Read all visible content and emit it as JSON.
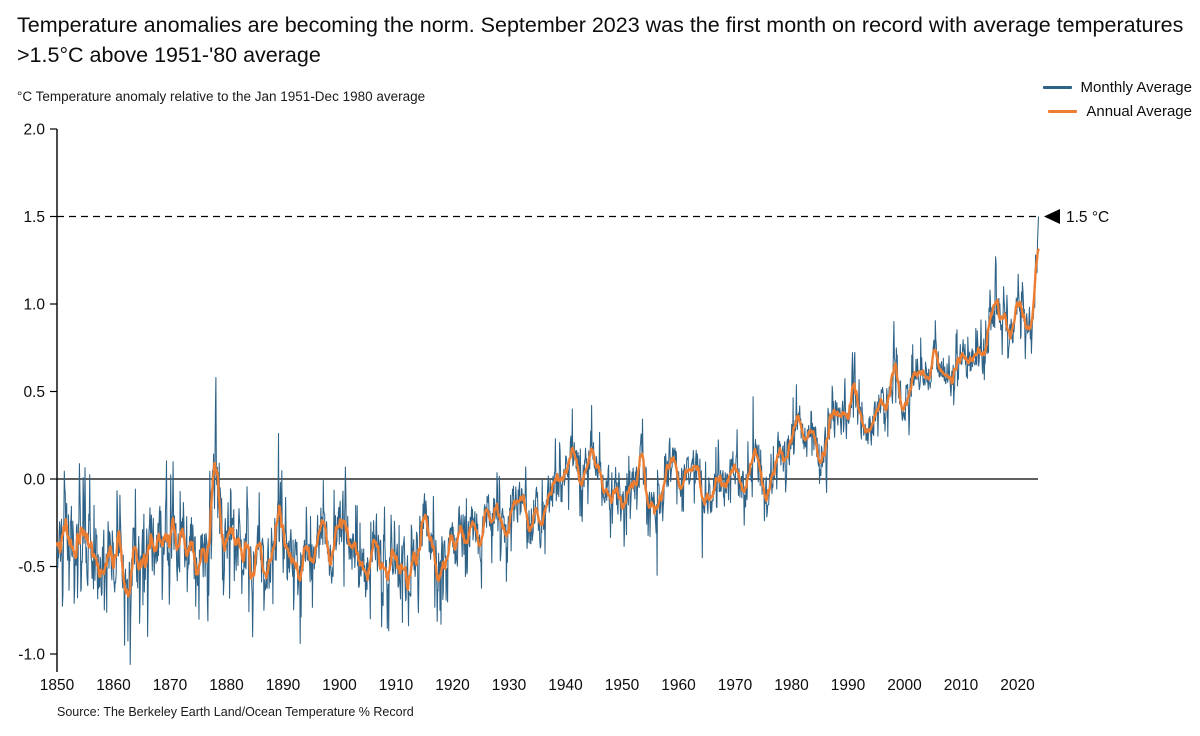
{
  "title": "Temperature anomalies are becoming the norm. September 2023 was the first month on record with average temperatures >1.5°C above 1951-'80 average",
  "subtitle": "°C Temperature anomaly relative to the Jan 1951-Dec 1980 average",
  "source": "Source: The Berkeley Earth Land/Ocean Temperature % Record",
  "legend": {
    "items": [
      {
        "label": "Monthly Average",
        "color": "#2E6287"
      },
      {
        "label": "Annual Average",
        "color": "#ED7D31"
      }
    ]
  },
  "annotation": {
    "arrow": "left-triangle",
    "label": "1.5 °C",
    "value": 1.5
  },
  "colors": {
    "monthly": "#2E6287",
    "annual": "#ED7D31",
    "axis": "#000000"
  },
  "gen": {
    "seed": 20230914,
    "ar": 0.38,
    "fat_tail_threshold": 0.9,
    "fat_tail_gain": 1.9,
    "amp_points": [
      [
        1850,
        0.205
      ],
      [
        1880,
        0.185
      ],
      [
        1915,
        0.16
      ],
      [
        1945,
        0.13
      ],
      [
        1975,
        0.115
      ],
      [
        2024,
        0.1
      ]
    ],
    "clamp_min": -1.07,
    "clamp_max": 1.5
  },
  "chart_data": {
    "type": "line",
    "title": "Temperature anomalies are becoming the norm. September 2023 was the first month on record with average temperatures >1.5°C above 1951-'80 average",
    "ylabel": "°C Temperature anomaly relative to the Jan 1951-Dec 1980 average",
    "xlabel": "",
    "xlim": [
      1850,
      2023.75
    ],
    "ylim": [
      -1.15,
      2.0
    ],
    "grid": false,
    "legend_position": "top-right",
    "x_ticks": [
      1850,
      1860,
      1870,
      1880,
      1890,
      1900,
      1910,
      1920,
      1930,
      1940,
      1950,
      1960,
      1970,
      1980,
      1990,
      2000,
      2010,
      2020
    ],
    "y_ticks": [
      2.0,
      1.5,
      1.0,
      0.5,
      0.0,
      -0.5,
      -1.0
    ],
    "y_tick_labels": [
      "2.0",
      "1.5",
      "1.0",
      "0.5",
      "0.0",
      "-0.5",
      "-1.0"
    ],
    "reference_lines": [
      {
        "value": 0.0,
        "style": "solid"
      },
      {
        "value": 1.5,
        "style": "dashed",
        "label": "1.5 °C"
      }
    ],
    "series": [
      {
        "name": "Monthly Average",
        "color": "#2E6287",
        "start_year": 1850,
        "n_months": 2085,
        "derivation": "annual values interpolated to monthly resolution plus high-frequency variability; notable observed months listed in monthly_extremes; final point Sep 2023 = 1.5"
      },
      {
        "name": "Annual Average",
        "color": "#ED7D31",
        "start_year": 1850,
        "values": [
          -0.4,
          -0.33,
          -0.31,
          -0.33,
          -0.33,
          -0.36,
          -0.44,
          -0.47,
          -0.43,
          -0.35,
          -0.44,
          -0.46,
          -0.55,
          -0.4,
          -0.5,
          -0.37,
          -0.35,
          -0.38,
          -0.32,
          -0.34,
          -0.33,
          -0.39,
          -0.31,
          -0.36,
          -0.4,
          -0.44,
          -0.43,
          -0.1,
          0.13,
          -0.33,
          -0.34,
          -0.29,
          -0.32,
          -0.38,
          -0.49,
          -0.48,
          -0.44,
          -0.5,
          -0.39,
          -0.18,
          -0.51,
          -0.44,
          -0.52,
          -0.53,
          -0.49,
          -0.45,
          -0.28,
          -0.26,
          -0.45,
          -0.33,
          -0.26,
          -0.32,
          -0.43,
          -0.51,
          -0.55,
          -0.42,
          -0.35,
          -0.53,
          -0.54,
          -0.56,
          -0.53,
          -0.54,
          -0.48,
          -0.45,
          -0.25,
          -0.19,
          -0.42,
          -0.51,
          -0.42,
          -0.33,
          -0.33,
          -0.26,
          -0.35,
          -0.31,
          -0.34,
          -0.26,
          -0.15,
          -0.24,
          -0.26,
          -0.39,
          -0.18,
          -0.13,
          -0.17,
          -0.32,
          -0.17,
          -0.23,
          -0.17,
          -0.05,
          -0.04,
          -0.03,
          0.06,
          0.1,
          0.03,
          0.04,
          0.17,
          0.07,
          -0.06,
          -0.04,
          -0.06,
          -0.07,
          -0.17,
          -0.04,
          0.04,
          0.12,
          -0.1,
          -0.12,
          -0.19,
          0.07,
          0.09,
          0.05,
          -0.01,
          0.08,
          0.05,
          0.09,
          -0.18,
          -0.09,
          -0.03,
          -0.01,
          -0.05,
          0.09,
          0.04,
          -0.07,
          0.03,
          0.18,
          -0.06,
          0.0,
          -0.09,
          0.2,
          0.09,
          0.18,
          0.28,
          0.34,
          0.16,
          0.32,
          0.17,
          0.14,
          0.2,
          0.35,
          0.4,
          0.3,
          0.45,
          0.42,
          0.25,
          0.26,
          0.33,
          0.47,
          0.36,
          0.48,
          0.63,
          0.43,
          0.43,
          0.56,
          0.63,
          0.64,
          0.58,
          0.7,
          0.65,
          0.66,
          0.55,
          0.66,
          0.73,
          0.61,
          0.66,
          0.69,
          0.76,
          0.89,
          0.97,
          0.91,
          0.81,
          0.94,
          0.97,
          0.86,
          0.9,
          1.2
        ]
      }
    ],
    "monthly_extremes": [
      {
        "month": "1861-12",
        "value": -0.95
      },
      {
        "month": "1862-12",
        "value": -1.06
      },
      {
        "month": "1866-01",
        "value": -0.9
      },
      {
        "month": "1878-02",
        "value": 0.58
      },
      {
        "month": "1889-03",
        "value": 0.26
      },
      {
        "month": "1893-01",
        "value": -0.94
      },
      {
        "month": "1911-02",
        "value": -0.82
      },
      {
        "month": "1917-12",
        "value": -0.83
      },
      {
        "month": "1941-03",
        "value": 0.4
      },
      {
        "month": "1944-08",
        "value": 0.42
      },
      {
        "month": "1956-03",
        "value": -0.55
      },
      {
        "month": "1964-03",
        "value": -0.45
      },
      {
        "month": "1973-03",
        "value": 0.47
      },
      {
        "month": "1998-02",
        "value": 0.9
      },
      {
        "month": "2016-01",
        "value": 1.12
      },
      {
        "month": "2016-02",
        "value": 1.27
      },
      {
        "month": "2016-03",
        "value": 1.23
      },
      {
        "month": "2020-02",
        "value": 1.17
      },
      {
        "month": "2023-01",
        "value": 0.98
      },
      {
        "month": "2023-03",
        "value": 1.28
      },
      {
        "month": "2023-06",
        "value": 1.18
      },
      {
        "month": "2023-07",
        "value": 1.35
      },
      {
        "month": "2023-08",
        "value": 1.43
      },
      {
        "month": "2023-09",
        "value": 1.5
      }
    ]
  }
}
